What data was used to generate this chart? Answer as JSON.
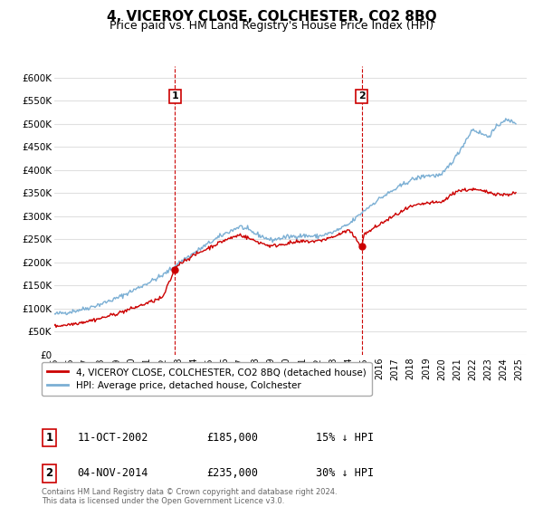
{
  "title": "4, VICEROY CLOSE, COLCHESTER, CO2 8BQ",
  "subtitle": "Price paid vs. HM Land Registry's House Price Index (HPI)",
  "title_fontsize": 11,
  "subtitle_fontsize": 9,
  "ylim": [
    0,
    625000
  ],
  "yticks": [
    0,
    50000,
    100000,
    150000,
    200000,
    250000,
    300000,
    350000,
    400000,
    450000,
    500000,
    550000,
    600000
  ],
  "ytick_labels": [
    "£0",
    "£50K",
    "£100K",
    "£150K",
    "£200K",
    "£250K",
    "£300K",
    "£350K",
    "£400K",
    "£450K",
    "£500K",
    "£550K",
    "£600K"
  ],
  "background_color": "#ffffff",
  "grid_color": "#e0e0e0",
  "red_line_color": "#cc0000",
  "blue_line_color": "#7bafd4",
  "vline_color": "#cc0000",
  "marker1_date": 2002.78,
  "marker1_value": 185000,
  "marker2_date": 2014.84,
  "marker2_value": 235000,
  "legend_line1": "4, VICEROY CLOSE, COLCHESTER, CO2 8BQ (detached house)",
  "legend_line2": "HPI: Average price, detached house, Colchester",
  "table_rows": [
    {
      "num": "1",
      "date": "11-OCT-2002",
      "price": "£185,000",
      "hpi": "15% ↓ HPI"
    },
    {
      "num": "2",
      "date": "04-NOV-2014",
      "price": "£235,000",
      "hpi": "30% ↓ HPI"
    }
  ],
  "footnote": "Contains HM Land Registry data © Crown copyright and database right 2024.\nThis data is licensed under the Open Government Licence v3.0.",
  "xmin": 1995.0,
  "xmax": 2025.5,
  "xticks": [
    1995,
    1996,
    1997,
    1998,
    1999,
    2000,
    2001,
    2002,
    2003,
    2004,
    2005,
    2006,
    2007,
    2008,
    2009,
    2010,
    2011,
    2012,
    2013,
    2014,
    2015,
    2016,
    2017,
    2018,
    2019,
    2020,
    2021,
    2022,
    2023,
    2024,
    2025
  ]
}
